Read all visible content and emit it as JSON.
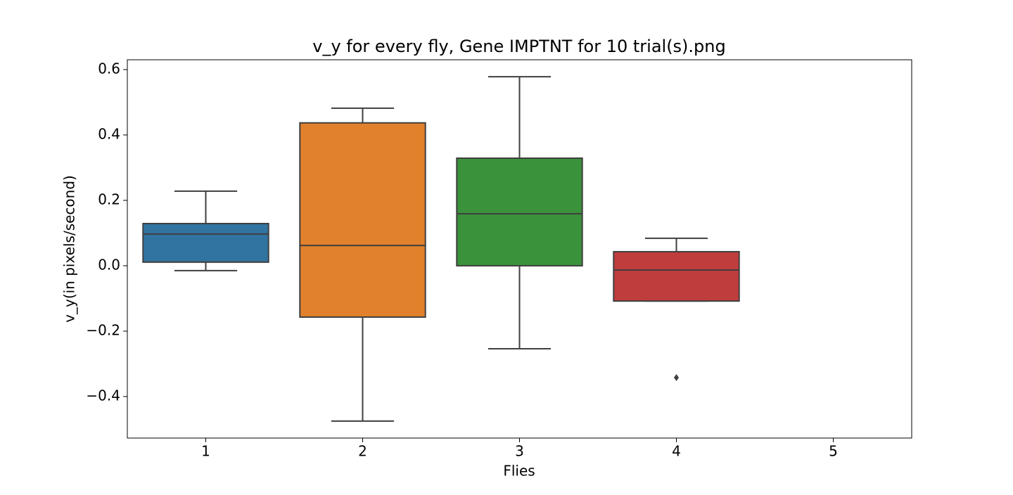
{
  "chart_data": {
    "type": "box",
    "title": "v_y for every fly, Gene IMPTNT for 10 trial(s).png",
    "x_label": "Flies",
    "y_label": "v_y(in pixels/second)",
    "categories": [
      "1",
      "2",
      "3",
      "4",
      "5"
    ],
    "colors": [
      "#3274a1",
      "#e1812c",
      "#3a923a",
      "#c03d3e",
      null
    ],
    "whisker_high": [
      0.228,
      0.482,
      0.578,
      0.084,
      null
    ],
    "q3": [
      0.129,
      0.437,
      0.329,
      0.043,
      null
    ],
    "median": [
      0.097,
      0.062,
      0.159,
      -0.013,
      null
    ],
    "q1": [
      0.011,
      -0.157,
      0.0,
      -0.108,
      null
    ],
    "whisker_low": [
      -0.015,
      -0.475,
      -0.254,
      -0.108,
      null
    ],
    "outliers": [
      [],
      [],
      [],
      [
        -0.342
      ],
      []
    ],
    "ylim": [
      -0.527,
      0.63
    ],
    "yticks": [
      {
        "value": -0.4,
        "label": "−0.4"
      },
      {
        "value": -0.2,
        "label": "−0.2"
      },
      {
        "value": 0,
        "label": "0.0"
      },
      0.2,
      0.4,
      0.6
    ]
  }
}
